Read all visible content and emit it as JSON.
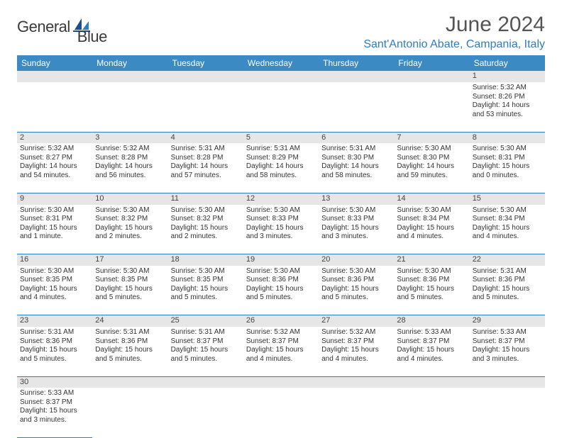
{
  "brand": {
    "name_a": "General",
    "name_b": "Blue"
  },
  "title": "June 2024",
  "location": "Sant'Antonio Abate, Campania, Italy",
  "colors": {
    "header_bg": "#3b8ac4",
    "header_text": "#ffffff",
    "border": "#2e7cc4",
    "daynum_bg": "#e6e6e6",
    "body_text": "#333333",
    "title_text": "#555555",
    "location_text": "#2e7cc4"
  },
  "typography": {
    "title_fontsize": 30,
    "location_fontsize": 16,
    "dayheader_fontsize": 12,
    "cell_fontsize": 10,
    "daynum_fontsize": 11
  },
  "day_headers": [
    "Sunday",
    "Monday",
    "Tuesday",
    "Wednesday",
    "Thursday",
    "Friday",
    "Saturday"
  ],
  "weeks": [
    {
      "nums": [
        "",
        "",
        "",
        "",
        "",
        "",
        "1"
      ],
      "cells": [
        null,
        null,
        null,
        null,
        null,
        null,
        {
          "sr": "Sunrise: 5:32 AM",
          "ss": "Sunset: 8:26 PM",
          "dl1": "Daylight: 14 hours",
          "dl2": "and 53 minutes."
        }
      ]
    },
    {
      "nums": [
        "2",
        "3",
        "4",
        "5",
        "6",
        "7",
        "8"
      ],
      "cells": [
        {
          "sr": "Sunrise: 5:32 AM",
          "ss": "Sunset: 8:27 PM",
          "dl1": "Daylight: 14 hours",
          "dl2": "and 54 minutes."
        },
        {
          "sr": "Sunrise: 5:32 AM",
          "ss": "Sunset: 8:28 PM",
          "dl1": "Daylight: 14 hours",
          "dl2": "and 56 minutes."
        },
        {
          "sr": "Sunrise: 5:31 AM",
          "ss": "Sunset: 8:28 PM",
          "dl1": "Daylight: 14 hours",
          "dl2": "and 57 minutes."
        },
        {
          "sr": "Sunrise: 5:31 AM",
          "ss": "Sunset: 8:29 PM",
          "dl1": "Daylight: 14 hours",
          "dl2": "and 58 minutes."
        },
        {
          "sr": "Sunrise: 5:31 AM",
          "ss": "Sunset: 8:30 PM",
          "dl1": "Daylight: 14 hours",
          "dl2": "and 58 minutes."
        },
        {
          "sr": "Sunrise: 5:30 AM",
          "ss": "Sunset: 8:30 PM",
          "dl1": "Daylight: 14 hours",
          "dl2": "and 59 minutes."
        },
        {
          "sr": "Sunrise: 5:30 AM",
          "ss": "Sunset: 8:31 PM",
          "dl1": "Daylight: 15 hours",
          "dl2": "and 0 minutes."
        }
      ]
    },
    {
      "nums": [
        "9",
        "10",
        "11",
        "12",
        "13",
        "14",
        "15"
      ],
      "cells": [
        {
          "sr": "Sunrise: 5:30 AM",
          "ss": "Sunset: 8:31 PM",
          "dl1": "Daylight: 15 hours",
          "dl2": "and 1 minute."
        },
        {
          "sr": "Sunrise: 5:30 AM",
          "ss": "Sunset: 8:32 PM",
          "dl1": "Daylight: 15 hours",
          "dl2": "and 2 minutes."
        },
        {
          "sr": "Sunrise: 5:30 AM",
          "ss": "Sunset: 8:32 PM",
          "dl1": "Daylight: 15 hours",
          "dl2": "and 2 minutes."
        },
        {
          "sr": "Sunrise: 5:30 AM",
          "ss": "Sunset: 8:33 PM",
          "dl1": "Daylight: 15 hours",
          "dl2": "and 3 minutes."
        },
        {
          "sr": "Sunrise: 5:30 AM",
          "ss": "Sunset: 8:33 PM",
          "dl1": "Daylight: 15 hours",
          "dl2": "and 3 minutes."
        },
        {
          "sr": "Sunrise: 5:30 AM",
          "ss": "Sunset: 8:34 PM",
          "dl1": "Daylight: 15 hours",
          "dl2": "and 4 minutes."
        },
        {
          "sr": "Sunrise: 5:30 AM",
          "ss": "Sunset: 8:34 PM",
          "dl1": "Daylight: 15 hours",
          "dl2": "and 4 minutes."
        }
      ]
    },
    {
      "nums": [
        "16",
        "17",
        "18",
        "19",
        "20",
        "21",
        "22"
      ],
      "cells": [
        {
          "sr": "Sunrise: 5:30 AM",
          "ss": "Sunset: 8:35 PM",
          "dl1": "Daylight: 15 hours",
          "dl2": "and 4 minutes."
        },
        {
          "sr": "Sunrise: 5:30 AM",
          "ss": "Sunset: 8:35 PM",
          "dl1": "Daylight: 15 hours",
          "dl2": "and 5 minutes."
        },
        {
          "sr": "Sunrise: 5:30 AM",
          "ss": "Sunset: 8:35 PM",
          "dl1": "Daylight: 15 hours",
          "dl2": "and 5 minutes."
        },
        {
          "sr": "Sunrise: 5:30 AM",
          "ss": "Sunset: 8:36 PM",
          "dl1": "Daylight: 15 hours",
          "dl2": "and 5 minutes."
        },
        {
          "sr": "Sunrise: 5:30 AM",
          "ss": "Sunset: 8:36 PM",
          "dl1": "Daylight: 15 hours",
          "dl2": "and 5 minutes."
        },
        {
          "sr": "Sunrise: 5:30 AM",
          "ss": "Sunset: 8:36 PM",
          "dl1": "Daylight: 15 hours",
          "dl2": "and 5 minutes."
        },
        {
          "sr": "Sunrise: 5:31 AM",
          "ss": "Sunset: 8:36 PM",
          "dl1": "Daylight: 15 hours",
          "dl2": "and 5 minutes."
        }
      ]
    },
    {
      "nums": [
        "23",
        "24",
        "25",
        "26",
        "27",
        "28",
        "29"
      ],
      "cells": [
        {
          "sr": "Sunrise: 5:31 AM",
          "ss": "Sunset: 8:36 PM",
          "dl1": "Daylight: 15 hours",
          "dl2": "and 5 minutes."
        },
        {
          "sr": "Sunrise: 5:31 AM",
          "ss": "Sunset: 8:36 PM",
          "dl1": "Daylight: 15 hours",
          "dl2": "and 5 minutes."
        },
        {
          "sr": "Sunrise: 5:31 AM",
          "ss": "Sunset: 8:37 PM",
          "dl1": "Daylight: 15 hours",
          "dl2": "and 5 minutes."
        },
        {
          "sr": "Sunrise: 5:32 AM",
          "ss": "Sunset: 8:37 PM",
          "dl1": "Daylight: 15 hours",
          "dl2": "and 4 minutes."
        },
        {
          "sr": "Sunrise: 5:32 AM",
          "ss": "Sunset: 8:37 PM",
          "dl1": "Daylight: 15 hours",
          "dl2": "and 4 minutes."
        },
        {
          "sr": "Sunrise: 5:33 AM",
          "ss": "Sunset: 8:37 PM",
          "dl1": "Daylight: 15 hours",
          "dl2": "and 4 minutes."
        },
        {
          "sr": "Sunrise: 5:33 AM",
          "ss": "Sunset: 8:37 PM",
          "dl1": "Daylight: 15 hours",
          "dl2": "and 3 minutes."
        }
      ]
    },
    {
      "nums": [
        "30",
        "",
        "",
        "",
        "",
        "",
        ""
      ],
      "cells": [
        {
          "sr": "Sunrise: 5:33 AM",
          "ss": "Sunset: 8:37 PM",
          "dl1": "Daylight: 15 hours",
          "dl2": "and 3 minutes."
        },
        null,
        null,
        null,
        null,
        null,
        null
      ]
    }
  ]
}
